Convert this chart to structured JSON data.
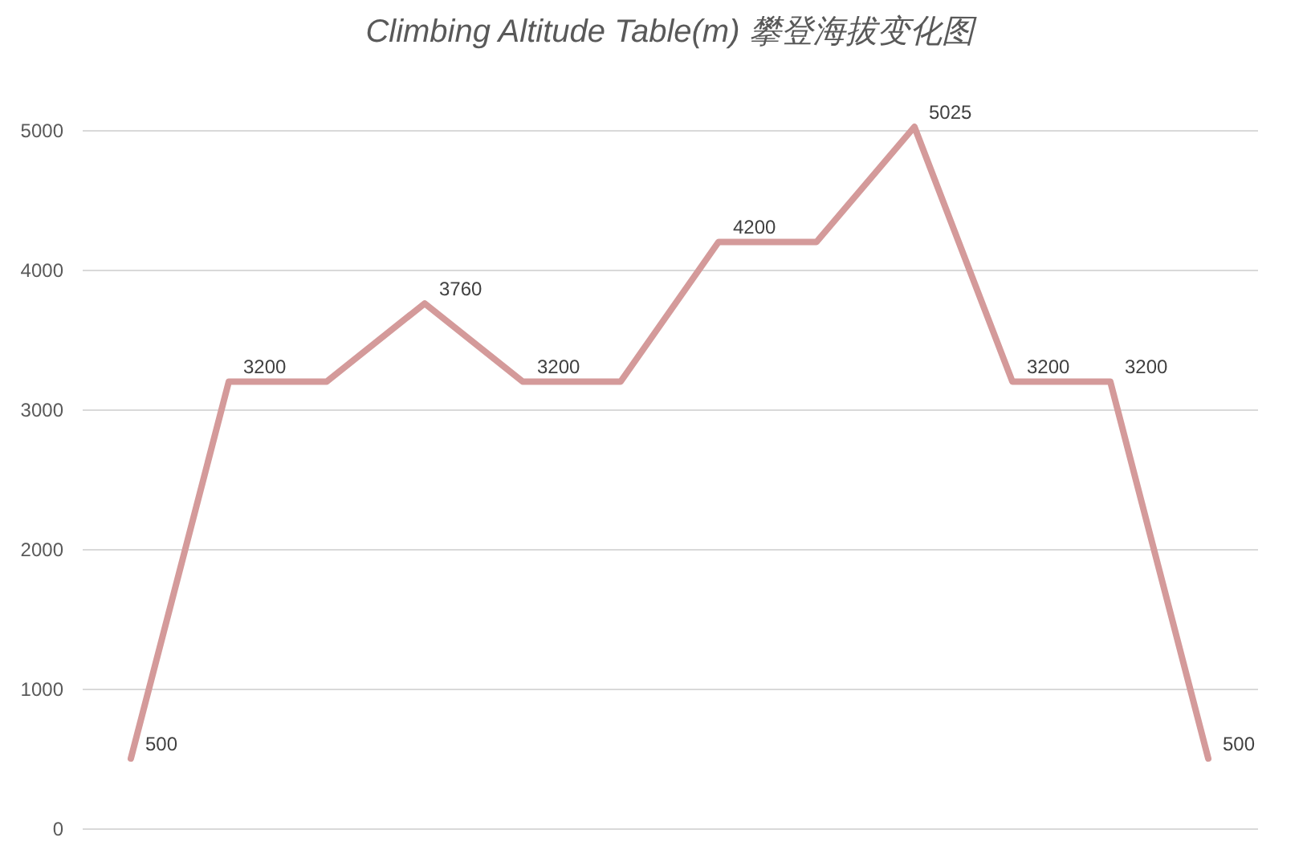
{
  "chart_data": {
    "type": "line",
    "title": "Climbing Altitude Table(m) 攀登海拔变化图",
    "categories": [
      null,
      null,
      null,
      null,
      null,
      null,
      null,
      null,
      null,
      null,
      null,
      null
    ],
    "values": [
      500,
      3200,
      3200,
      3760,
      3200,
      3200,
      4200,
      4200,
      5025,
      3200,
      3200,
      500
    ],
    "value_labels": [
      "500",
      "3200",
      null,
      "3760",
      "3200",
      null,
      "4200",
      null,
      "5025",
      "3200",
      "3200",
      "500"
    ],
    "color": "#d49a9a",
    "ylim": [
      0,
      5025
    ],
    "yticks": [
      0,
      1000,
      2000,
      3000,
      4000,
      5000
    ],
    "grid": "y",
    "tick_labels": "y"
  }
}
